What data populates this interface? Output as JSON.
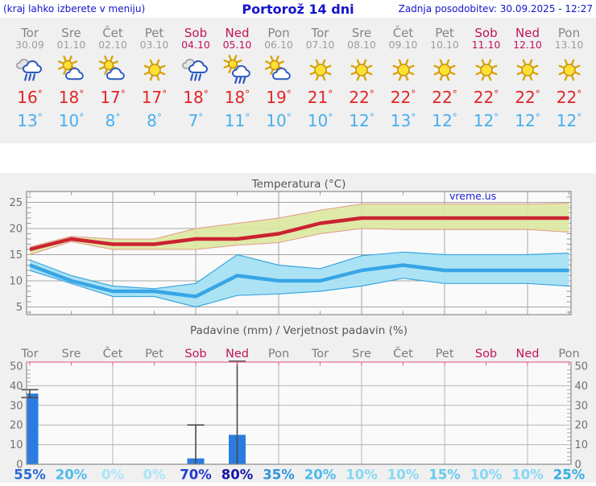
{
  "header": {
    "hint": "(kraj lahko izberete v meniju)",
    "title": "Portorož 14 dni",
    "updated": "Zadnja posodobitev: 30.09.2025 - 12:27"
  },
  "units": {
    "degree": "°"
  },
  "days": [
    {
      "name": "Tor",
      "date": "30.09",
      "weekend": false,
      "icon": "rain",
      "tmax": "16",
      "tmin": "13"
    },
    {
      "name": "Sre",
      "date": "01.10",
      "weekend": false,
      "icon": "sun-cloud",
      "tmax": "18",
      "tmin": "10"
    },
    {
      "name": "Čet",
      "date": "02.10",
      "weekend": false,
      "icon": "sun-cloud",
      "tmax": "17",
      "tmin": "8"
    },
    {
      "name": "Pet",
      "date": "03.10",
      "weekend": false,
      "icon": "sun",
      "tmax": "17",
      "tmin": "8"
    },
    {
      "name": "Sob",
      "date": "04.10",
      "weekend": true,
      "icon": "rain",
      "tmax": "18",
      "tmin": "7"
    },
    {
      "name": "Ned",
      "date": "05.10",
      "weekend": true,
      "icon": "sun-cloud-rain",
      "tmax": "18",
      "tmin": "11"
    },
    {
      "name": "Pon",
      "date": "06.10",
      "weekend": false,
      "icon": "sun-cloud",
      "tmax": "19",
      "tmin": "10"
    },
    {
      "name": "Tor",
      "date": "07.10",
      "weekend": false,
      "icon": "sun",
      "tmax": "21",
      "tmin": "10"
    },
    {
      "name": "Sre",
      "date": "08.10",
      "weekend": false,
      "icon": "sun",
      "tmax": "22",
      "tmin": "12"
    },
    {
      "name": "Čet",
      "date": "09.10",
      "weekend": false,
      "icon": "sun",
      "tmax": "22",
      "tmin": "13"
    },
    {
      "name": "Pet",
      "date": "10.10",
      "weekend": false,
      "icon": "sun",
      "tmax": "22",
      "tmin": "12"
    },
    {
      "name": "Sob",
      "date": "11.10",
      "weekend": true,
      "icon": "sun",
      "tmax": "22",
      "tmin": "12"
    },
    {
      "name": "Ned",
      "date": "12.10",
      "weekend": true,
      "icon": "sun",
      "tmax": "22",
      "tmin": "12"
    },
    {
      "name": "Pon",
      "date": "13.10",
      "weekend": false,
      "icon": "sun",
      "tmax": "22",
      "tmin": "12"
    }
  ],
  "chart_data": [
    {
      "type": "line",
      "title": "Temperatura (°C)",
      "watermark": "vreme.us",
      "ylim": [
        3.8,
        27.2
      ],
      "yticks": [
        5,
        10,
        15,
        20,
        25
      ],
      "grid_days": [
        3,
        5,
        7,
        9,
        11,
        13
      ],
      "categories": [
        "Tor",
        "Sre",
        "Čet",
        "Pet",
        "Sob",
        "Ned",
        "Pon",
        "Tor",
        "Sre",
        "Čet",
        "Pet",
        "Sob",
        "Ned",
        "Pon"
      ],
      "series": [
        {
          "name": "max_temp",
          "color": "#cb2331",
          "values": [
            16,
            18,
            17,
            17,
            18,
            18,
            19,
            21,
            22,
            22,
            22,
            22,
            22,
            22
          ]
        },
        {
          "name": "max_range_high",
          "values": [
            16.5,
            18.5,
            18,
            18,
            20,
            21,
            22,
            23.5,
            24.7,
            24.7,
            24.7,
            24.7,
            24.7,
            24.8
          ]
        },
        {
          "name": "max_range_low",
          "values": [
            15,
            17.5,
            16,
            16,
            16,
            16.8,
            17.3,
            19,
            20,
            19.8,
            19.8,
            19.8,
            19.8,
            19.3
          ]
        },
        {
          "name": "min_temp",
          "color": "#38a5e5",
          "values": [
            13,
            10,
            8,
            8,
            7,
            11,
            10,
            10,
            12,
            13,
            12,
            12,
            12,
            12
          ]
        },
        {
          "name": "min_range_high",
          "values": [
            14,
            11,
            9,
            8.5,
            9.5,
            15,
            13,
            12.3,
            14.8,
            15.5,
            15,
            15,
            15,
            15.3
          ]
        },
        {
          "name": "min_range_low",
          "values": [
            12,
            9.5,
            7,
            7,
            5,
            7.2,
            7.5,
            8,
            9,
            10.5,
            9.5,
            9.5,
            9.5,
            9
          ]
        }
      ]
    },
    {
      "type": "bar",
      "title": "Padavine (mm) / Verjetnost padavin (%)",
      "ylim": [
        0,
        52
      ],
      "yticks": [
        0,
        10,
        20,
        30,
        40,
        50
      ],
      "grid_days": [
        3,
        5,
        7,
        9,
        11,
        13
      ],
      "categories": [
        "Tor",
        "Sre",
        "Čet",
        "Pet",
        "Sob",
        "Ned",
        "Pon",
        "Tor",
        "Sre",
        "Čet",
        "Pet",
        "Sob",
        "Ned",
        "Pon"
      ],
      "values_mm": [
        36,
        0,
        0,
        0,
        3,
        15,
        0,
        0,
        0,
        0,
        0,
        0,
        0,
        0
      ],
      "range_mm": [
        [
          34,
          38
        ],
        null,
        null,
        null,
        [
          0,
          20
        ],
        [
          0,
          52.5
        ],
        null,
        null,
        null,
        null,
        null,
        null,
        null,
        null
      ],
      "probability_pct": [
        "55%",
        "20%",
        "0%",
        "0%",
        "70%",
        "80%",
        "35%",
        "20%",
        "10%",
        "10%",
        "15%",
        "10%",
        "10%",
        "25%"
      ],
      "probability_colors": [
        "#2a6bd2",
        "#4fbbec",
        "#aae6f7",
        "#aae6f7",
        "#2639cf",
        "#1517a8",
        "#2f95de",
        "#4fbbec",
        "#86d8f3",
        "#86d8f3",
        "#68cbef",
        "#86d8f3",
        "#86d8f3",
        "#35abe5"
      ]
    }
  ],
  "colors": {
    "bar": "#2b7ce0",
    "max_band_fill": "#dce8a0",
    "max_band_edge": "#e29a8a",
    "min_band_fill": "#a6e1f4",
    "min_band_edge": "#3aa6e0",
    "weekend": "#c01458",
    "weekday_label": "#7d7d7d",
    "precip_top_frame": "#e5708e",
    "whisker": "#4a4a4a"
  }
}
